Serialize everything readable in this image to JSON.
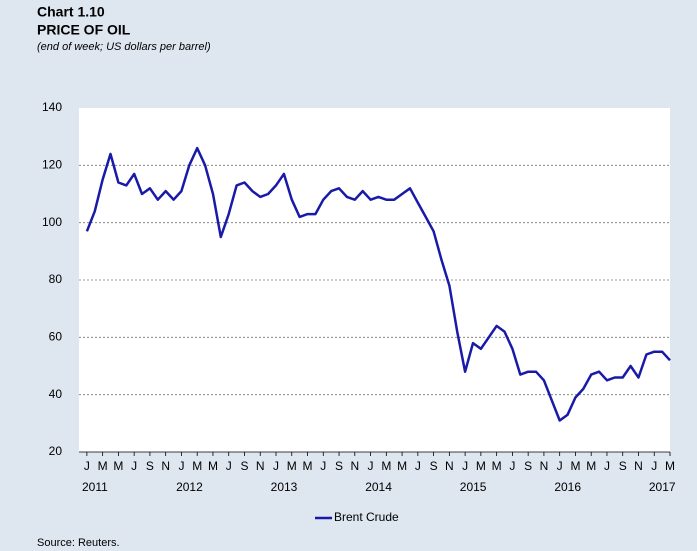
{
  "chart_data": {
    "type": "line",
    "title": "Chart 1.10",
    "subtitle": "PRICE OF OIL",
    "note": "(end of week; US dollars per barrel)",
    "source": "Source: Reuters.",
    "x": [
      "2011-01",
      "2011-02",
      "2011-03",
      "2011-04",
      "2011-05",
      "2011-06",
      "2011-07",
      "2011-08",
      "2011-09",
      "2011-10",
      "2011-11",
      "2011-12",
      "2012-01",
      "2012-02",
      "2012-03",
      "2012-04",
      "2012-05",
      "2012-06",
      "2012-07",
      "2012-08",
      "2012-09",
      "2012-10",
      "2012-11",
      "2012-12",
      "2013-01",
      "2013-02",
      "2013-03",
      "2013-04",
      "2013-05",
      "2013-06",
      "2013-07",
      "2013-08",
      "2013-09",
      "2013-10",
      "2013-11",
      "2013-12",
      "2014-01",
      "2014-02",
      "2014-03",
      "2014-04",
      "2014-05",
      "2014-06",
      "2014-07",
      "2014-08",
      "2014-09",
      "2014-10",
      "2014-11",
      "2014-12",
      "2015-01",
      "2015-02",
      "2015-03",
      "2015-04",
      "2015-05",
      "2015-06",
      "2015-07",
      "2015-08",
      "2015-09",
      "2015-10",
      "2015-11",
      "2015-12",
      "2016-01",
      "2016-02",
      "2016-03",
      "2016-04",
      "2016-05",
      "2016-06",
      "2016-07",
      "2016-08",
      "2016-09",
      "2016-10",
      "2016-11",
      "2016-12",
      "2017-01",
      "2017-02",
      "2017-03"
    ],
    "series": [
      {
        "name": "Brent Crude",
        "color": "#1a1aa8",
        "values": [
          97,
          104,
          115,
          124,
          114,
          113,
          117,
          110,
          112,
          108,
          111,
          108,
          111,
          120,
          126,
          120,
          110,
          95,
          103,
          113,
          114,
          111,
          109,
          110,
          113,
          117,
          108,
          102,
          103,
          103,
          108,
          111,
          112,
          109,
          108,
          111,
          108,
          109,
          108,
          108,
          110,
          112,
          107,
          102,
          97,
          87,
          78,
          62,
          48,
          58,
          56,
          60,
          64,
          62,
          56,
          47,
          48,
          48,
          45,
          38,
          31,
          33,
          39,
          42,
          47,
          48,
          45,
          46,
          46,
          50,
          46,
          54,
          55,
          55,
          52
        ]
      }
    ],
    "xlim": [
      "2010-12",
      "2017-03"
    ],
    "xticks": [
      {
        "value": "2011-01",
        "label": "J"
      },
      {
        "value": "2011-03",
        "label": "M"
      },
      {
        "value": "2011-05",
        "label": "M"
      },
      {
        "value": "2011-07",
        "label": "J"
      },
      {
        "value": "2011-09",
        "label": "S"
      },
      {
        "value": "2011-11",
        "label": "N"
      },
      {
        "value": "2012-01",
        "label": "J"
      },
      {
        "value": "2012-03",
        "label": "M"
      },
      {
        "value": "2012-05",
        "label": "M"
      },
      {
        "value": "2012-07",
        "label": "J"
      },
      {
        "value": "2012-09",
        "label": "S"
      },
      {
        "value": "2012-11",
        "label": "N"
      },
      {
        "value": "2013-01",
        "label": "J"
      },
      {
        "value": "2013-03",
        "label": "M"
      },
      {
        "value": "2013-05",
        "label": "M"
      },
      {
        "value": "2013-07",
        "label": "J"
      },
      {
        "value": "2013-09",
        "label": "S"
      },
      {
        "value": "2013-11",
        "label": "N"
      },
      {
        "value": "2014-01",
        "label": "J"
      },
      {
        "value": "2014-03",
        "label": "M"
      },
      {
        "value": "2014-05",
        "label": "M"
      },
      {
        "value": "2014-07",
        "label": "J"
      },
      {
        "value": "2014-09",
        "label": "S"
      },
      {
        "value": "2014-11",
        "label": "N"
      },
      {
        "value": "2015-01",
        "label": "J"
      },
      {
        "value": "2015-03",
        "label": "M"
      },
      {
        "value": "2015-05",
        "label": "M"
      },
      {
        "value": "2015-07",
        "label": "J"
      },
      {
        "value": "2015-09",
        "label": "S"
      },
      {
        "value": "2015-11",
        "label": "N"
      },
      {
        "value": "2016-01",
        "label": "J"
      },
      {
        "value": "2016-03",
        "label": "M"
      },
      {
        "value": "2016-05",
        "label": "M"
      },
      {
        "value": "2016-07",
        "label": "J"
      },
      {
        "value": "2016-09",
        "label": "S"
      },
      {
        "value": "2016-11",
        "label": "N"
      },
      {
        "value": "2017-01",
        "label": "J"
      },
      {
        "value": "2017-03",
        "label": "M"
      }
    ],
    "year_ticks": [
      {
        "value": "2011-01",
        "label": "2011"
      },
      {
        "value": "2012-01",
        "label": "2012"
      },
      {
        "value": "2013-01",
        "label": "2013"
      },
      {
        "value": "2014-01",
        "label": "2014"
      },
      {
        "value": "2015-01",
        "label": "2015"
      },
      {
        "value": "2016-01",
        "label": "2016"
      },
      {
        "value": "2017-01",
        "label": "2017"
      }
    ],
    "ylim": [
      20,
      140
    ],
    "yticks": [
      20,
      40,
      60,
      80,
      100,
      120,
      140
    ],
    "grid": true
  }
}
